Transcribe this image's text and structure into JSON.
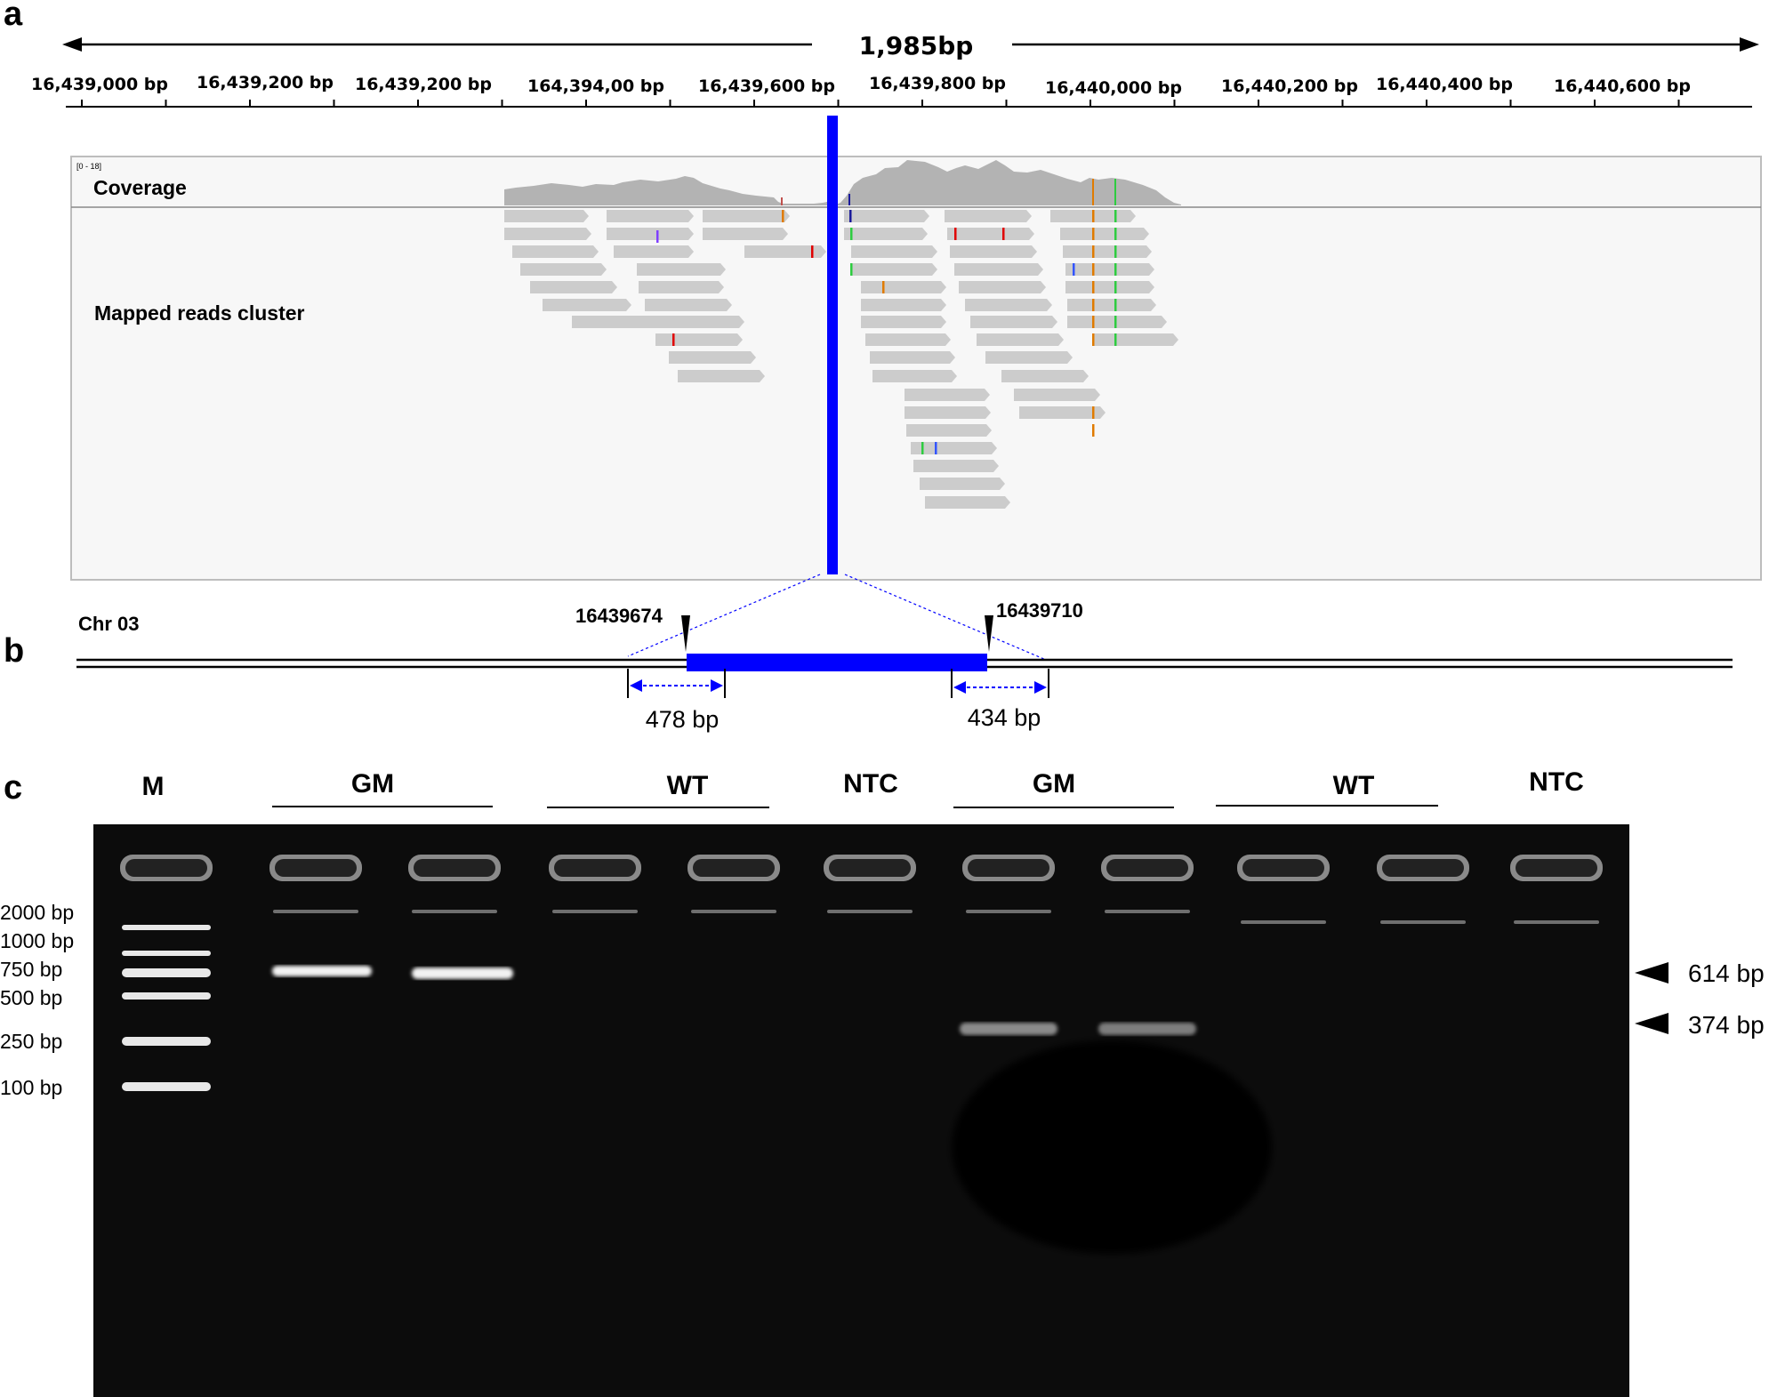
{
  "panel_a": {
    "letter": "a",
    "span_label": "1,985bp",
    "ticks": [
      "16,439,000 bp",
      "16,439,200 bp",
      "16,439,200 bp",
      "164,394,00 bp",
      "16,439,600 bp",
      "16,439,800 bp",
      "16,440,000 bp",
      "16,440,200 bp",
      "16,440,400 bp",
      "16,440,600 bp"
    ],
    "range_label": "[0 - 18]",
    "coverage_label": "Coverage",
    "reads_label": "Mapped reads cluster",
    "colors": {
      "read": "#cccccc",
      "coverage": "#b3b3b3",
      "insert": "#0000ff",
      "panel_bg": "#f7f7f7"
    }
  },
  "panel_b": {
    "letter": "b",
    "chrom_label": "Chr 03",
    "left_pos": "16439674",
    "right_pos": "16439710",
    "left_amplicon": "478 bp",
    "right_amplicon": "434 bp"
  },
  "panel_c": {
    "letter": "c",
    "headers": [
      "M",
      "GM",
      "WT",
      "NTC",
      "GM",
      "WT",
      "NTC"
    ],
    "ladder": [
      "2000 bp",
      "1000 bp",
      "750 bp",
      "500 bp",
      "250 bp",
      "100 bp"
    ],
    "band_labels": [
      "614 bp",
      "374 bp"
    ]
  }
}
